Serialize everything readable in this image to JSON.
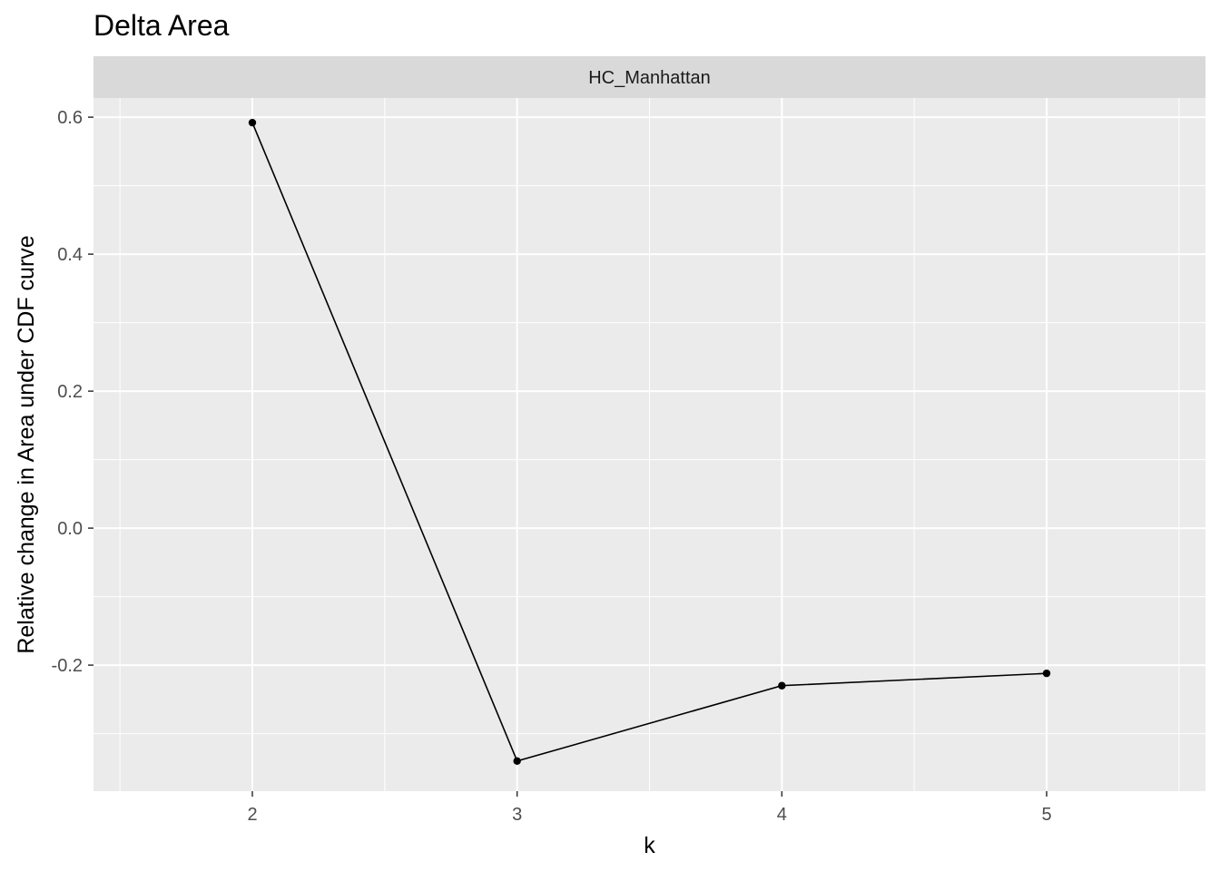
{
  "chart_data": {
    "type": "line",
    "title": "Delta Area",
    "facet_label": "HC_Manhattan",
    "xlabel": "k",
    "ylabel": "Relative change in Area under CDF curve",
    "x": [
      2,
      3,
      4,
      5
    ],
    "series": [
      {
        "values": [
          0.592,
          -0.34,
          -0.23,
          -0.212
        ]
      }
    ],
    "xlim": [
      1.4,
      5.6
    ],
    "ylim": [
      -0.384,
      0.628
    ],
    "x_ticks": [
      2,
      3,
      4,
      5
    ],
    "x_tick_labels": [
      "2",
      "3",
      "4",
      "5"
    ],
    "y_ticks": [
      -0.2,
      0.0,
      0.2,
      0.4,
      0.6
    ],
    "y_tick_labels": [
      "-0.2",
      "0.0",
      "0.2",
      "0.4",
      "0.6"
    ],
    "y_minor_ticks": [
      -0.3,
      -0.1,
      0.1,
      0.3,
      0.5
    ],
    "grid": true,
    "legend": "none",
    "colors": {
      "panel_background": "#ebebeb",
      "grid": "#ffffff",
      "strip_background": "#d9d9d9",
      "line": "#000000",
      "point": "#000000",
      "tick_text": "#4d4d4d"
    }
  }
}
